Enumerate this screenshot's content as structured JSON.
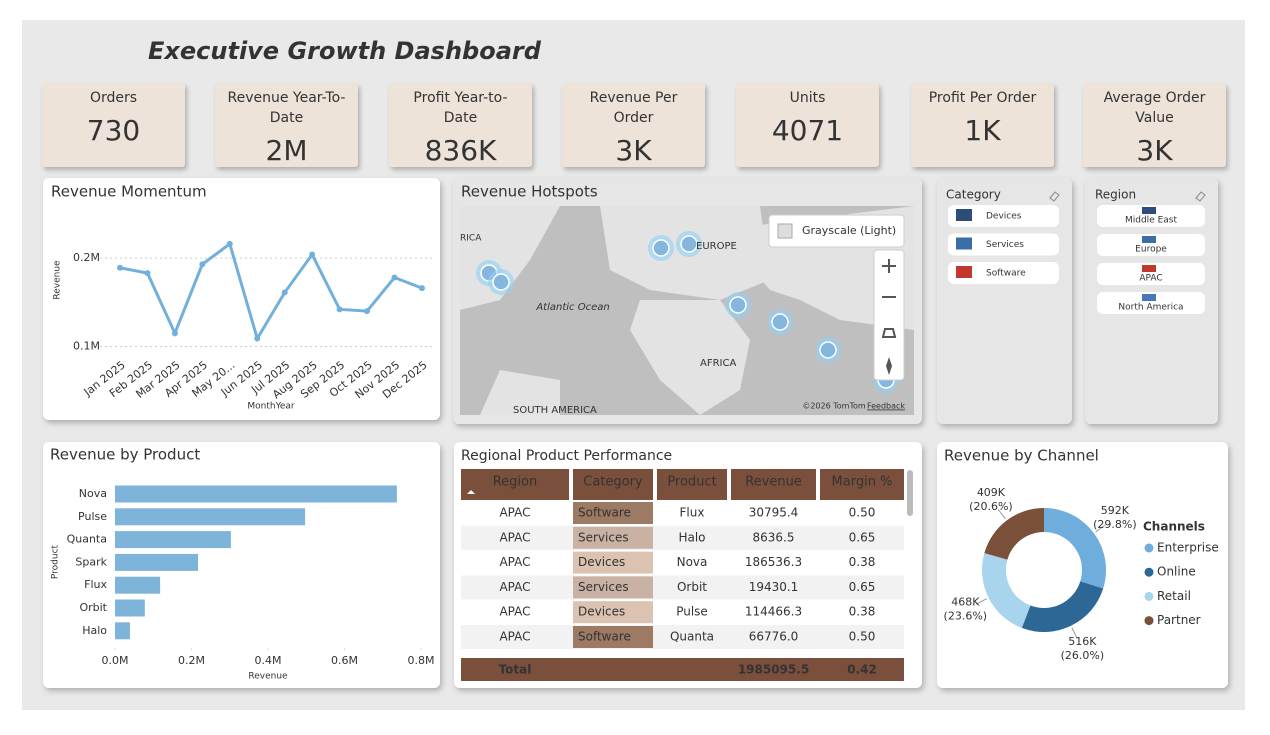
{
  "title": "Executive Growth Dashboard",
  "kpis": [
    {
      "label": "Orders",
      "value": "730"
    },
    {
      "label": "Revenue Year-To-Date",
      "value": "2M"
    },
    {
      "label": "Profit Year-to-Date",
      "value": "836K"
    },
    {
      "label": "Revenue Per Order",
      "value": "3K"
    },
    {
      "label": "Units",
      "value": "4071"
    },
    {
      "label": "Profit Per Order",
      "value": "1K"
    },
    {
      "label": "Average Order Value",
      "value": "3K"
    }
  ],
  "chart_data": [
    {
      "type": "line",
      "title": "Revenue Momentum",
      "x_label": "MonthYear",
      "y_label": "Revenue",
      "categories": [
        "Jan 2025",
        "Feb 2025",
        "Mar 2025",
        "Apr 2025",
        "May 20...",
        "Jun 2025",
        "Jul 2025",
        "Aug 2025",
        "Sep 2025",
        "Oct 2025",
        "Nov 2025",
        "Dec 2025"
      ],
      "values": [
        189000,
        183000,
        115000,
        193000,
        216000,
        109000,
        161000,
        204000,
        142000,
        140000,
        178000,
        166000
      ],
      "color": "#72b0dc",
      "ylim": [
        87000,
        234000
      ],
      "yticks": [
        {
          "value": 100000,
          "label": "0.1M"
        },
        {
          "value": 200000,
          "label": "0.2M"
        }
      ],
      "grid": true
    },
    {
      "type": "bar",
      "orientation": "horizontal",
      "title": "Revenue by Product",
      "x_label": "Revenue",
      "y_label": "Product",
      "categories": [
        "Nova",
        "Pulse",
        "Quanta",
        "Spark",
        "Flux",
        "Orbit",
        "Halo"
      ],
      "values": [
        737000,
        497000,
        303000,
        217000,
        118000,
        78000,
        39000
      ],
      "color": "#7fb4da",
      "xlim": [
        0,
        800000
      ],
      "xticks": [
        {
          "value": 0,
          "label": "0.0M"
        },
        {
          "value": 200000,
          "label": "0.2M"
        },
        {
          "value": 400000,
          "label": "0.4M"
        },
        {
          "value": 600000,
          "label": "0.6M"
        },
        {
          "value": 800000,
          "label": "0.8M"
        }
      ]
    },
    {
      "type": "donut",
      "title": "Revenue by Channel",
      "legend_title": "Channels",
      "series": [
        {
          "name": "Enterprise",
          "color": "#6faddc",
          "values": [
            592000
          ],
          "value_labels": [
            "592K"
          ],
          "percent_labels": [
            "(29.8%)"
          ]
        },
        {
          "name": "Online",
          "color": "#2c6796",
          "values": [
            516000
          ],
          "value_labels": [
            "516K"
          ],
          "percent_labels": [
            "(26.0%)"
          ]
        },
        {
          "name": "Retail",
          "color": "#a9d4ee",
          "values": [
            468000
          ],
          "value_labels": [
            "468K"
          ],
          "percent_labels": [
            "(23.6%)"
          ]
        },
        {
          "name": "Partner",
          "color": "#7a5038",
          "values": [
            409000
          ],
          "value_labels": [
            "409K"
          ],
          "percent_labels": [
            "(20.6%)"
          ]
        }
      ]
    }
  ],
  "map": {
    "title": "Revenue Hotspots",
    "style": "Grayscale (Light)",
    "labels": [
      "RICA",
      "EUROPE",
      "Atlantic Ocean",
      "AFRICA",
      "SOUTH AMERICA"
    ],
    "credit": "©2026 TomTom",
    "feedback": "Feedback"
  },
  "slicers": [
    {
      "title": "Category",
      "items": [
        "Devices",
        "Services",
        "Software"
      ]
    },
    {
      "title": "Region",
      "items": [
        "Middle East",
        "Europe",
        "APAC",
        "North America"
      ]
    }
  ],
  "table": {
    "title": "Regional Product Performance",
    "columns": [
      "Region",
      "Category",
      "Product",
      "Revenue",
      "Margin %"
    ],
    "rows": [
      [
        "APAC",
        "Software",
        "Flux",
        "30795.4",
        "0.50"
      ],
      [
        "APAC",
        "Services",
        "Halo",
        "8636.5",
        "0.65"
      ],
      [
        "APAC",
        "Devices",
        "Nova",
        "186536.3",
        "0.38"
      ],
      [
        "APAC",
        "Services",
        "Orbit",
        "19430.1",
        "0.65"
      ],
      [
        "APAC",
        "Devices",
        "Pulse",
        "114466.3",
        "0.38"
      ],
      [
        "APAC",
        "Software",
        "Quanta",
        "66776.0",
        "0.50"
      ]
    ],
    "category_colors": [
      "#9c7a64",
      "#c9b2a4",
      "#dcc2b1",
      "#c9b2a4",
      "#dcc2b1",
      "#9c7a64"
    ],
    "total": {
      "label": "Total",
      "revenue": "1985095.5",
      "margin": "0.42"
    }
  }
}
